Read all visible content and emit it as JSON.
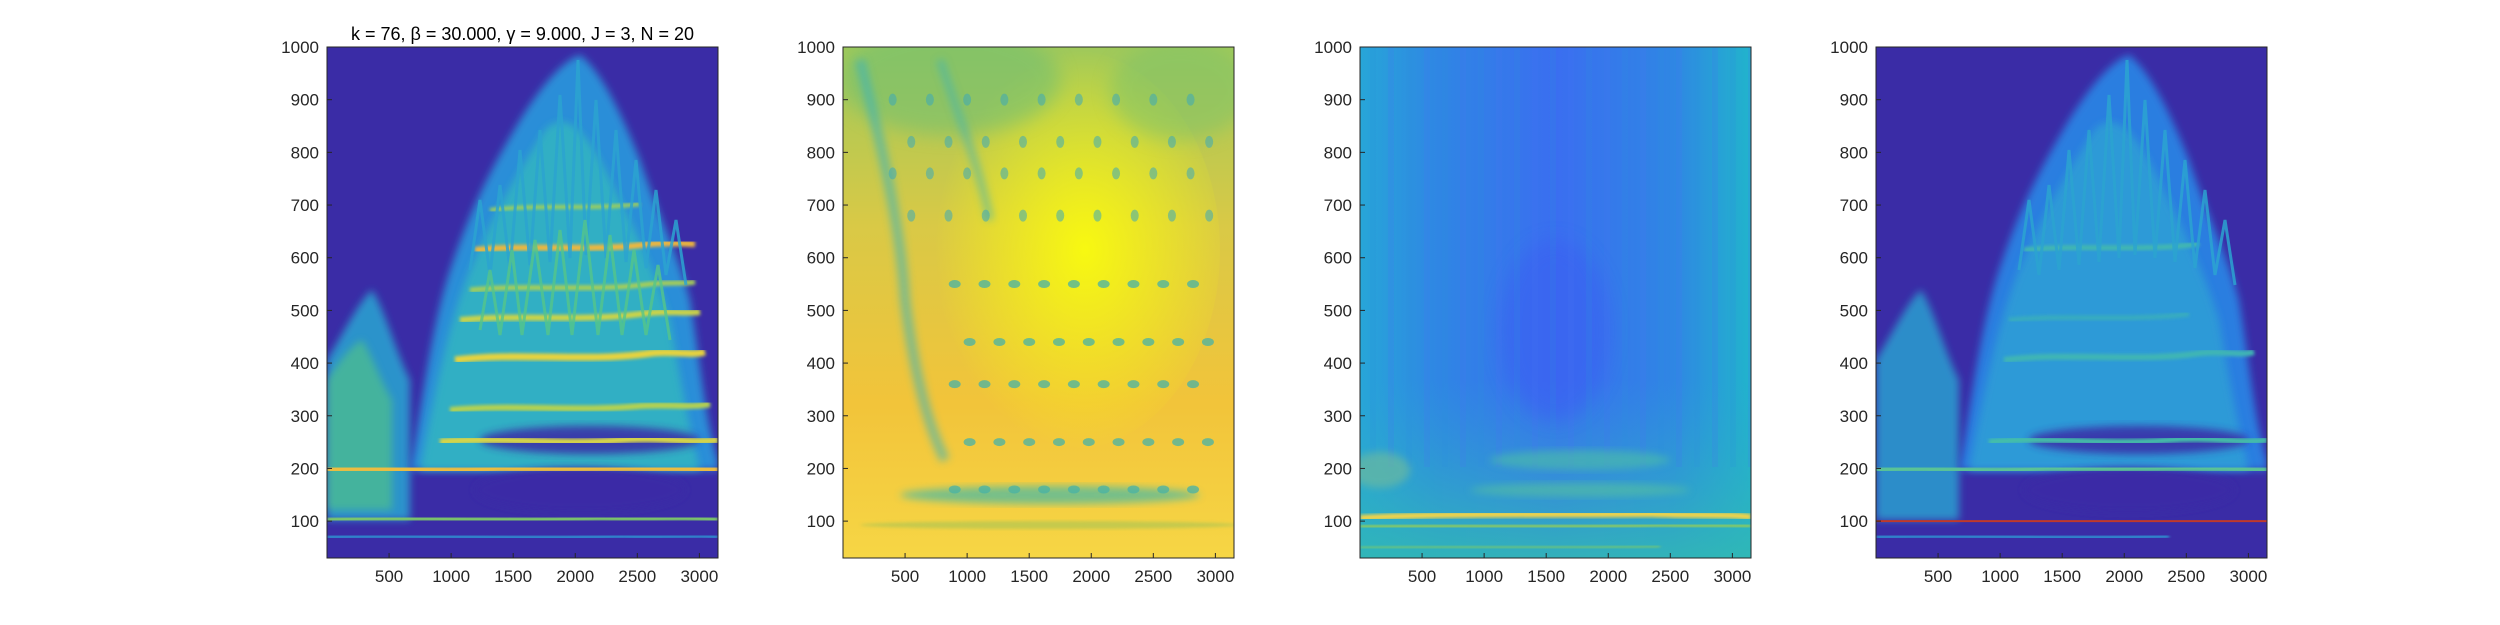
{
  "chart_data": [
    {
      "type": "heatmap",
      "panel": "panel-1",
      "title": "k = 76, β = 30.000, γ = 9.000, J = 3, N = 20",
      "xlim": [
        0,
        3150
      ],
      "ylim": [
        30,
        1000
      ],
      "xticks": [
        500,
        1000,
        1500,
        2000,
        2500,
        3000
      ],
      "yticks": [
        100,
        200,
        300,
        400,
        500,
        600,
        700,
        800,
        900,
        1000
      ],
      "colormap": "parula",
      "description_values": {
        "background_level": 0.0,
        "ridge_frequencies": [
          80,
          190,
          300,
          400,
          470,
          530,
          600
        ],
        "ridge_level": 0.85,
        "active_region_x": [
          700,
          3000
        ],
        "active_region_y_max": 1000
      }
    },
    {
      "type": "heatmap",
      "panel": "panel-2",
      "title": "",
      "xlim": [
        0,
        3150
      ],
      "ylim": [
        30,
        1000
      ],
      "xticks": [
        500,
        1000,
        1500,
        2000,
        2500,
        3000
      ],
      "yticks": [
        100,
        200,
        300,
        400,
        500,
        600,
        700,
        800,
        900,
        1000
      ],
      "colormap": "parula",
      "description_values": {
        "background_level": 0.55,
        "hot_center": [
          1500,
          600
        ],
        "hot_level": 0.95,
        "dot_rows": [
          160,
          250,
          360,
          440,
          550
        ]
      }
    },
    {
      "type": "heatmap",
      "panel": "panel-3",
      "title": "",
      "xlim": [
        0,
        3150
      ],
      "ylim": [
        30,
        1000
      ],
      "xticks": [
        500,
        1000,
        1500,
        2000,
        2500,
        3000
      ],
      "yticks": [
        100,
        200,
        300,
        400,
        500,
        600,
        700,
        800,
        900,
        1000
      ],
      "colormap": "parula",
      "description_values": {
        "background_level": 0.45,
        "low_band_level": 0.2,
        "low_band_x": [
          1000,
          2400
        ],
        "bright_line_frequency": 100,
        "bright_line_level": 0.85
      }
    },
    {
      "type": "heatmap",
      "panel": "panel-4",
      "title": "",
      "xlim": [
        0,
        3150
      ],
      "ylim": [
        30,
        1000
      ],
      "xticks": [
        500,
        1000,
        1500,
        2000,
        2500,
        3000
      ],
      "yticks": [
        100,
        200,
        300,
        400,
        500,
        600,
        700,
        800,
        900,
        1000
      ],
      "colormap": "parula",
      "description_values": {
        "background_level": 0.0,
        "ridge_level": 0.55,
        "overlay_line_frequency": 100,
        "overlay_line_color": "#c0392b"
      }
    }
  ],
  "colors": {
    "background": "#3a2ca6",
    "axis": "#262626",
    "parula_dark": "#352a87",
    "parula_blue": "#1f7fd8",
    "parula_cyan": "#29b8c4",
    "parula_green": "#8bc85c",
    "parula_yellow": "#f6d645",
    "parula_bright": "#f9fb0e",
    "overlay_red": "#c0392b"
  }
}
